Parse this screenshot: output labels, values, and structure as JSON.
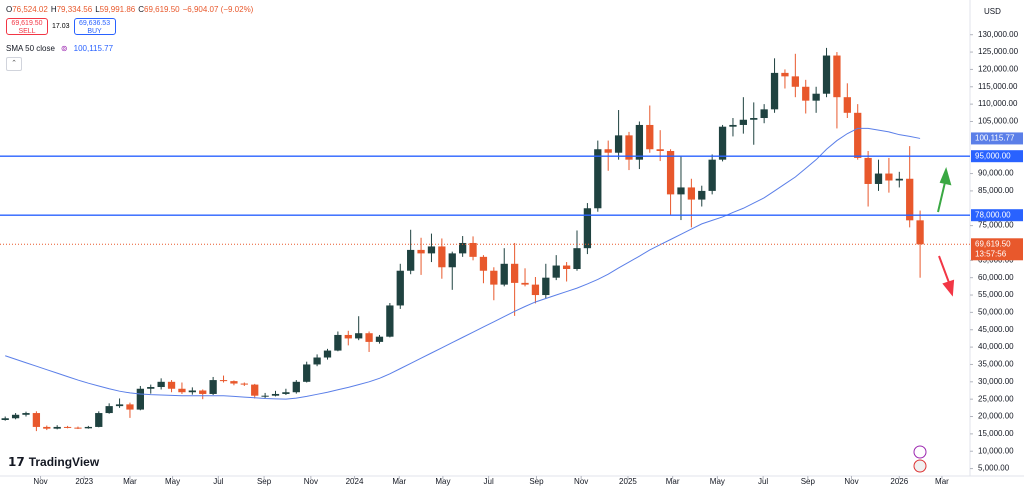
{
  "header": {
    "ohlc": [
      {
        "key": "O",
        "value": "76,524.02"
      },
      {
        "key": "H",
        "value": "79,334.56"
      },
      {
        "key": "L",
        "value": "59,991.86"
      },
      {
        "key": "C",
        "value": "69,619.50"
      }
    ],
    "change": "−6,904.07 (−9.02%)",
    "sell_price": "69,619.50",
    "sell_label": "SELL",
    "spread": "17.03",
    "buy_price": "69,636.53",
    "buy_label": "BUY",
    "indicator": "SMA 50 close",
    "indicator_value": "100,115.77",
    "currency": "USD",
    "brand": "TradingView"
  },
  "chart_data": {
    "type": "candlestick",
    "up_color": "#1f4240",
    "down_color": "#e8582c",
    "ylim": [
      2000,
      140000
    ],
    "xlim": [
      -0.5,
      92.8
    ],
    "yticks": [
      {
        "value": 5000,
        "label": "5,000.00"
      },
      {
        "value": 10000,
        "label": "10,000.00"
      },
      {
        "value": 15000,
        "label": "15,000.00"
      },
      {
        "value": 20000,
        "label": "20,000.00"
      },
      {
        "value": 25000,
        "label": "25,000.00"
      },
      {
        "value": 30000,
        "label": "30,000.00"
      },
      {
        "value": 35000,
        "label": "35,000.00"
      },
      {
        "value": 40000,
        "label": "40,000.00"
      },
      {
        "value": 45000,
        "label": "45,000.00"
      },
      {
        "value": 50000,
        "label": "50,000.00"
      },
      {
        "value": 55000,
        "label": "55,000.00"
      },
      {
        "value": 60000,
        "label": "60,000.00"
      },
      {
        "value": 65000,
        "label": "65,000.00"
      },
      {
        "value": 75000,
        "label": "75,000.00"
      },
      {
        "value": 85000,
        "label": "85,000.00"
      },
      {
        "value": 90000,
        "label": "90,000.00"
      },
      {
        "value": 105000,
        "label": "105,000.00"
      },
      {
        "value": 110000,
        "label": "110,000.00"
      },
      {
        "value": 115000,
        "label": "115,000.00"
      },
      {
        "value": 120000,
        "label": "120,000.00"
      },
      {
        "value": 125000,
        "label": "125,000.00"
      },
      {
        "value": 130000,
        "label": "130,000.00"
      }
    ],
    "xticks": [
      {
        "value": 3.4,
        "label": "Nov"
      },
      {
        "value": 7.6,
        "label": "2023"
      },
      {
        "value": 12.0,
        "label": "Mar"
      },
      {
        "value": 16.1,
        "label": "May"
      },
      {
        "value": 20.5,
        "label": "Jul"
      },
      {
        "value": 24.9,
        "label": "Sep"
      },
      {
        "value": 29.4,
        "label": "Nov"
      },
      {
        "value": 33.6,
        "label": "2024"
      },
      {
        "value": 37.9,
        "label": "Mar"
      },
      {
        "value": 42.1,
        "label": "May"
      },
      {
        "value": 46.5,
        "label": "Jul"
      },
      {
        "value": 51.1,
        "label": "Sep"
      },
      {
        "value": 55.4,
        "label": "Nov"
      },
      {
        "value": 59.9,
        "label": "2025"
      },
      {
        "value": 64.2,
        "label": "Mar"
      },
      {
        "value": 68.5,
        "label": "May"
      },
      {
        "value": 72.9,
        "label": "Jul"
      },
      {
        "value": 77.2,
        "label": "Sep"
      },
      {
        "value": 81.4,
        "label": "Nov"
      },
      {
        "value": 86.0,
        "label": "2026"
      },
      {
        "value": 90.1,
        "label": "Mar"
      }
    ],
    "candles": [
      [
        19000,
        20000,
        18800,
        19500
      ],
      [
        19500,
        21000,
        19200,
        20500
      ],
      [
        20500,
        21400,
        20000,
        21000
      ],
      [
        21000,
        21500,
        15800,
        17000
      ],
      [
        17000,
        17400,
        16100,
        16500
      ],
      [
        16500,
        17500,
        16300,
        17000
      ],
      [
        17000,
        17300,
        16600,
        16800
      ],
      [
        16800,
        17100,
        16400,
        16600
      ],
      [
        16600,
        17300,
        16500,
        17000
      ],
      [
        17000,
        21500,
        16900,
        21000
      ],
      [
        21000,
        23800,
        20800,
        23000
      ],
      [
        23000,
        25200,
        22500,
        23500
      ],
      [
        23500,
        24000,
        19600,
        22000
      ],
      [
        22000,
        28800,
        21800,
        28000
      ],
      [
        28000,
        29200,
        26600,
        28500
      ],
      [
        28500,
        31000,
        27800,
        30000
      ],
      [
        30000,
        30500,
        27000,
        28000
      ],
      [
        28000,
        29800,
        26500,
        27000
      ],
      [
        27000,
        28400,
        26300,
        27500
      ],
      [
        27500,
        27800,
        25000,
        26500
      ],
      [
        26500,
        31400,
        26200,
        30500
      ],
      [
        30500,
        31800,
        29800,
        30200
      ],
      [
        30200,
        30400,
        29000,
        29500
      ],
      [
        29500,
        29800,
        28800,
        29200
      ],
      [
        29200,
        29400,
        25200,
        26000
      ],
      [
        26000,
        26800,
        25300,
        26000
      ],
      [
        26000,
        27400,
        25800,
        26500
      ],
      [
        26500,
        28000,
        26200,
        27000
      ],
      [
        27000,
        30500,
        26600,
        30000
      ],
      [
        30000,
        35800,
        29800,
        35000
      ],
      [
        35000,
        37900,
        34500,
        37000
      ],
      [
        37000,
        39500,
        36400,
        39000
      ],
      [
        39000,
        44500,
        38800,
        43500
      ],
      [
        43500,
        44700,
        40500,
        42500
      ],
      [
        42500,
        48900,
        42000,
        44000
      ],
      [
        44000,
        44500,
        38600,
        41500
      ],
      [
        41500,
        43500,
        41000,
        43000
      ],
      [
        43000,
        52700,
        42800,
        52000
      ],
      [
        52000,
        64000,
        51000,
        62000
      ],
      [
        62000,
        73800,
        61000,
        68000
      ],
      [
        68000,
        71500,
        60800,
        67000
      ],
      [
        67000,
        72700,
        64500,
        69000
      ],
      [
        69000,
        71300,
        59700,
        63000
      ],
      [
        63000,
        67500,
        56500,
        67000
      ],
      [
        67000,
        72000,
        66000,
        70000
      ],
      [
        70000,
        71900,
        65000,
        66000
      ],
      [
        66000,
        66500,
        58400,
        62000
      ],
      [
        62000,
        63000,
        53500,
        58000
      ],
      [
        58000,
        68500,
        57500,
        64000
      ],
      [
        64000,
        70000,
        49000,
        58500
      ],
      [
        58500,
        62700,
        57500,
        58000
      ],
      [
        58000,
        60200,
        52600,
        55000
      ],
      [
        55000,
        64000,
        54000,
        60000
      ],
      [
        60000,
        66500,
        59300,
        63500
      ],
      [
        63500,
        64500,
        58900,
        62500
      ],
      [
        62500,
        73600,
        62000,
        68500
      ],
      [
        68500,
        81500,
        66800,
        80000
      ],
      [
        80000,
        99500,
        79000,
        97000
      ],
      [
        97000,
        99500,
        90800,
        96000
      ],
      [
        96000,
        108300,
        94000,
        101000
      ],
      [
        101000,
        102000,
        91000,
        94000
      ],
      [
        94000,
        105000,
        91300,
        104000
      ],
      [
        104000,
        109600,
        96000,
        97000
      ],
      [
        97000,
        102500,
        93600,
        96500
      ],
      [
        96500,
        97000,
        78200,
        84000
      ],
      [
        84000,
        95000,
        76600,
        86000
      ],
      [
        86000,
        88500,
        74500,
        82500
      ],
      [
        82500,
        86500,
        80500,
        85000
      ],
      [
        85000,
        95500,
        84000,
        94000
      ],
      [
        94000,
        104000,
        93500,
        103500
      ],
      [
        103500,
        106000,
        100700,
        104000
      ],
      [
        104000,
        112000,
        101500,
        105500
      ],
      [
        105500,
        110500,
        98300,
        106000
      ],
      [
        106000,
        110000,
        104500,
        108500
      ],
      [
        108500,
        123200,
        107500,
        119000
      ],
      [
        119000,
        120000,
        114500,
        118000
      ],
      [
        118000,
        124500,
        112000,
        115000
      ],
      [
        115000,
        117000,
        107300,
        111000
      ],
      [
        111000,
        115000,
        107500,
        113000
      ],
      [
        113000,
        126200,
        112000,
        124000
      ],
      [
        124000,
        125000,
        103000,
        112000
      ],
      [
        112000,
        116000,
        106000,
        107500
      ],
      [
        107500,
        110000,
        94000,
        94500
      ],
      [
        94500,
        96500,
        80500,
        87000
      ],
      [
        87000,
        94000,
        85000,
        90000
      ],
      [
        90000,
        94500,
        84500,
        88000
      ],
      [
        88000,
        90500,
        86000,
        88500
      ],
      [
        88500,
        97900,
        74500,
        76524.02
      ],
      [
        76524.02,
        79334.56,
        59991.86,
        69619.5
      ]
    ],
    "sma": {
      "name": "SMA 50 close",
      "color": "#5b7fe8",
      "values": [
        37500,
        36500,
        35500,
        34500,
        33500,
        32500,
        31500,
        30500,
        29600,
        28800,
        28000,
        27300,
        26800,
        26500,
        26300,
        26200,
        26100,
        26000,
        26000,
        26000,
        26000,
        26000,
        25800,
        25600,
        25400,
        25200,
        25100,
        25000,
        25300,
        25800,
        26400,
        27000,
        27700,
        28400,
        29200,
        30000,
        31000,
        32300,
        33800,
        35300,
        36800,
        38300,
        39800,
        41300,
        42800,
        44300,
        45800,
        47300,
        48800,
        50300,
        51700,
        53000,
        54000,
        55000,
        56000,
        57000,
        58200,
        59500,
        61000,
        62800,
        64500,
        66200,
        68000,
        69500,
        71000,
        72500,
        74000,
        75500,
        76500,
        77500,
        78800,
        80000,
        81500,
        83000,
        85000,
        87000,
        89000,
        91500,
        94000,
        97000,
        99500,
        101500,
        103000,
        103000,
        102500,
        102000,
        101200,
        100700,
        100115.77
      ],
      "value_label": "100,115.77"
    },
    "hlines": [
      {
        "value": 95000,
        "label": "95,000.00",
        "color": "#2962ff"
      },
      {
        "value": 78000,
        "label": "78,000.00",
        "color": "#2962ff"
      }
    ],
    "last_price": {
      "value": 69619.5,
      "label": "69,619.50",
      "countdown": "13:57:56",
      "color": "#e8582c"
    }
  }
}
